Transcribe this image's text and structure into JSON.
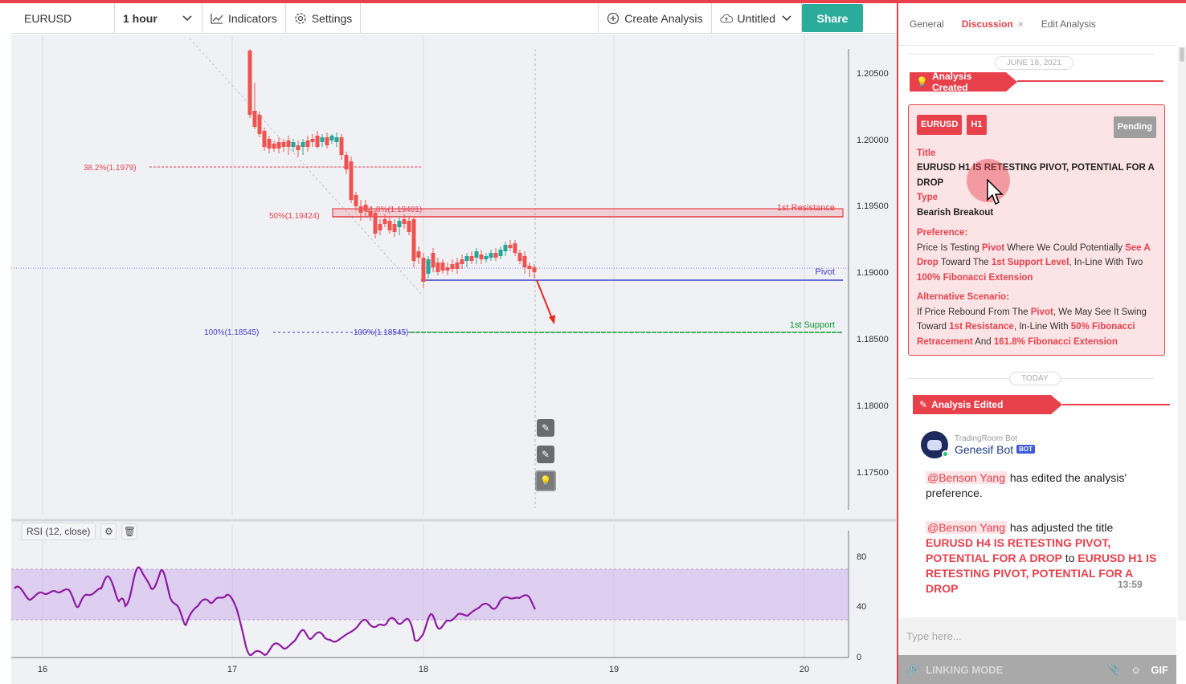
{
  "toolbar": {
    "symbol": "EURUSD",
    "interval": "1 hour",
    "indicators_label": "Indicators",
    "settings_label": "Settings",
    "create_analysis_label": "Create Analysis",
    "untitled_label": "Untitled",
    "share_label": "Share"
  },
  "chart": {
    "price_ticks": [
      "1.20500",
      "1.20000",
      "1.19500",
      "1.19000",
      "1.18500",
      "1.18000",
      "1.17500"
    ],
    "date_ticks": [
      "16",
      "17",
      "18",
      "19",
      "20"
    ],
    "fib_382_label": "38.2%(1.1979)",
    "fib_50_label": "50%(1.19424)",
    "fib_618_label": "61.8%(1.19481)",
    "fib_100_left_label": "100%(1.18545)",
    "fib_100_mid_label": "100%(1.18545)",
    "resistance_label": "1st Resistance",
    "pivot_label": "Pivot",
    "support_label": "1st Support",
    "colors": {
      "up": "#26a69a",
      "down": "#ef5350",
      "pivot": "#3f3fcf",
      "support": "#0a9a32",
      "resistance": "#e8414c",
      "rsi": "#8e1aa3"
    }
  },
  "rsi": {
    "label": "RSI (12, close)",
    "ticks": [
      "80",
      "40",
      "0"
    ]
  },
  "panel": {
    "tabs": [
      "General",
      "Discussion",
      "Edit Analysis"
    ],
    "active_tab": "Discussion",
    "date_top": "JUNE 18, 2021",
    "analysis_created": "Analysis Created",
    "card": {
      "pair": "EURUSD",
      "timeframe": "H1",
      "status": "Pending",
      "title_label": "Title",
      "title_value": "EURUSD H1 IS RETESTING PIVOT, POTENTIAL FOR A DROP",
      "type_label": "Type",
      "type_value": "Bearish Breakout",
      "pref_label": "Preference:",
      "pref_1": "Price Is Testing ",
      "pref_pivot": "Pivot",
      "pref_2": " Where We Could Potentially ",
      "pref_drop": "See A Drop",
      "pref_3": " Toward The ",
      "pref_support": "1st Support Level",
      "pref_4": ", In-Line With Two ",
      "pref_fib": "100% Fibonacci Extension",
      "alt_label": "Alternative Scenario:",
      "alt_1": "If Price Rebound From The ",
      "alt_pivot": "Pivot",
      "alt_2": ", We May See It Swing Toward ",
      "alt_res": "1st Resistance",
      "alt_3": ", In-Line With ",
      "alt_fib50": "50% Fibonacci Retracement",
      "alt_4": " And ",
      "alt_fib161": "161.8% Fibonacci Extension"
    },
    "date_today": "TODAY",
    "analysis_edited": "Analysis Edited",
    "bot_sub": "TradingRoom Bot",
    "bot_name": "Genesif Bot",
    "bot_tag": "BOT",
    "msg1_mention": "@Benson Yang",
    "msg1_text": " has edited the analysis' preference.",
    "msg2_mention": "@Benson Yang",
    "msg2_text": " has adjusted the title ",
    "msg2_old": "EURUSD H4 IS RETESTING PIVOT, POTENTIAL FOR A DROP",
    "msg2_to": " to ",
    "msg2_new": "EURUSD H1 IS RETESTING PIVOT, POTENTIAL FOR A DROP",
    "msg_time": "13:59",
    "composer_placeholder": "Type here...",
    "linking_mode": "LINKING MODE",
    "gif_label": "GIF"
  }
}
